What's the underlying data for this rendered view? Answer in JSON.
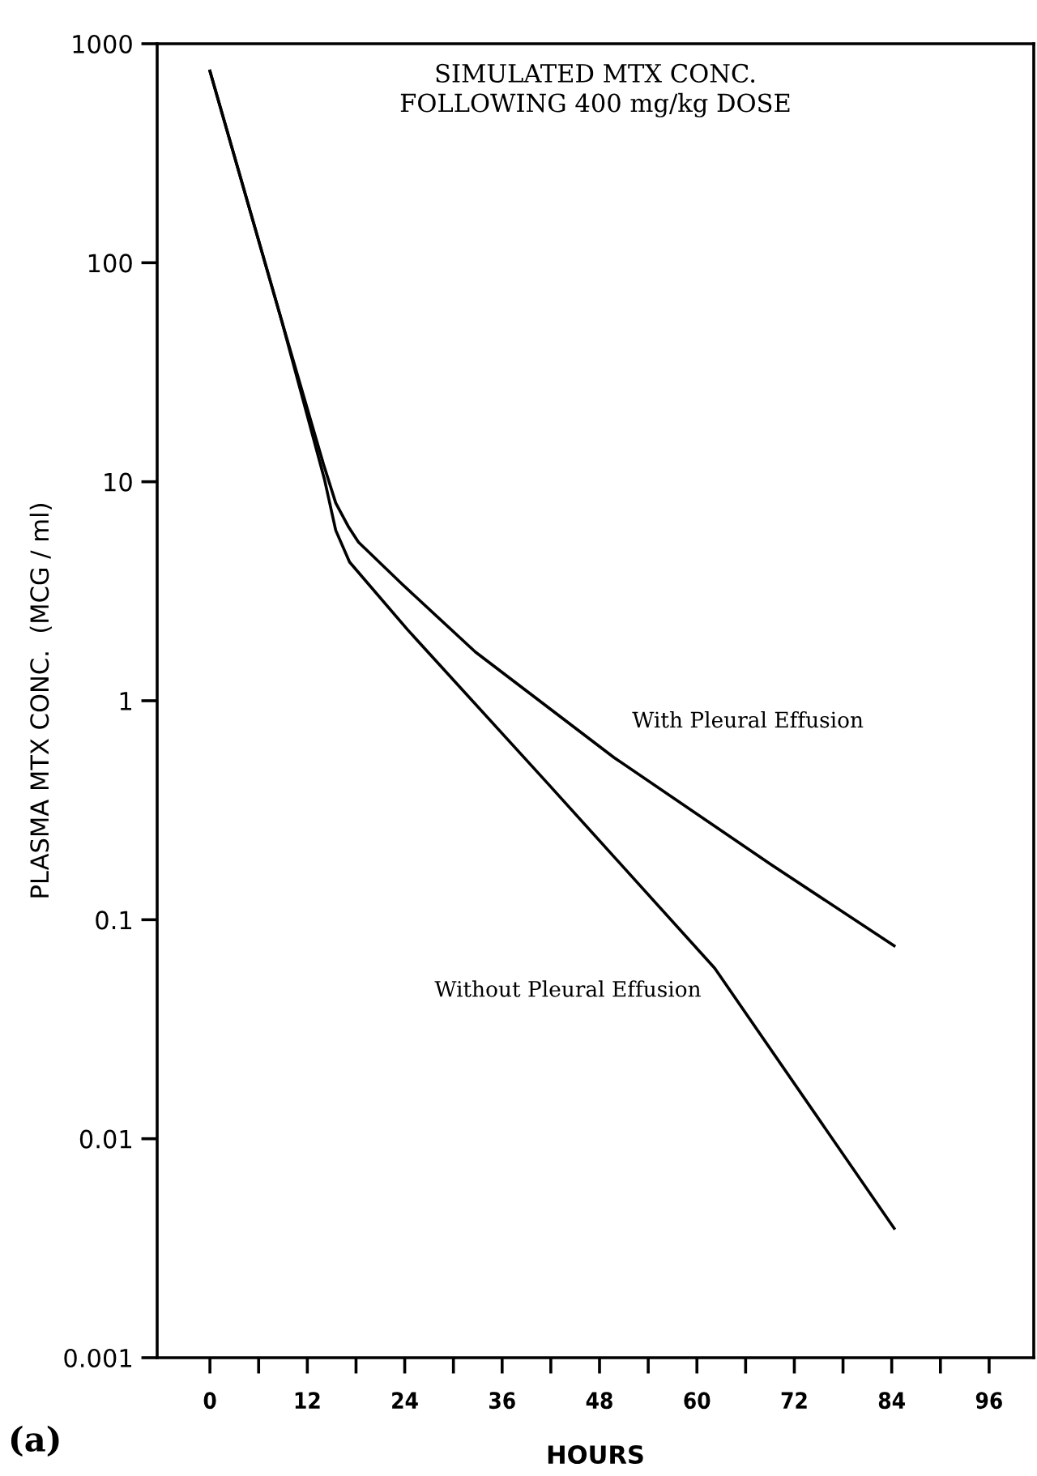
{
  "chart_data": {
    "type": "line",
    "title": "SIMULATED MTX CONC.\nFOLLOWING 400 mg/kg DOSE",
    "xlabel": "HOURS",
    "ylabel": "PLASMA MTX CONC.  (MCG / ml)",
    "log": "y",
    "grid": false,
    "legend": false,
    "marker": "none",
    "line_style": "solid",
    "xlim": [
      -6.5,
      101.5
    ],
    "ylim": [
      0.001,
      1000
    ],
    "xticks": [
      0,
      {
        "value": 6,
        "label": null
      },
      12,
      {
        "value": 18,
        "label": null
      },
      24,
      {
        "value": 30,
        "label": null
      },
      36,
      {
        "value": 42,
        "label": null
      },
      48,
      {
        "value": 54,
        "label": null
      },
      60,
      {
        "value": 66,
        "label": null
      },
      72,
      {
        "value": 78,
        "label": null
      },
      84,
      {
        "value": 90,
        "label": null
      },
      96
    ],
    "yticks": [
      0.001,
      0.01,
      0.1,
      1,
      10,
      100,
      1000
    ],
    "series": [
      {
        "name": "With Pleural Effusion",
        "color": "#000000",
        "x": [
          0,
          8.8,
          14,
          15.5,
          17.1,
          18.3,
          23.7,
          32.7,
          49.8,
          69.1,
          84.3
        ],
        "values": [
          750,
          55,
          12,
          8,
          6.2,
          5.3,
          3.4,
          1.67,
          0.55,
          0.179,
          0.076
        ]
      },
      {
        "name": "Without Pleural Effusion",
        "color": "#000000",
        "x": [
          0,
          8.8,
          14.1,
          15.5,
          17.2,
          24.4,
          41.6,
          62.2,
          84.3
        ],
        "values": [
          750,
          55,
          10.3,
          6,
          4.3,
          2.1,
          0.42,
          0.06,
          0.0039
        ]
      }
    ],
    "annotations": [
      "(a)"
    ]
  }
}
